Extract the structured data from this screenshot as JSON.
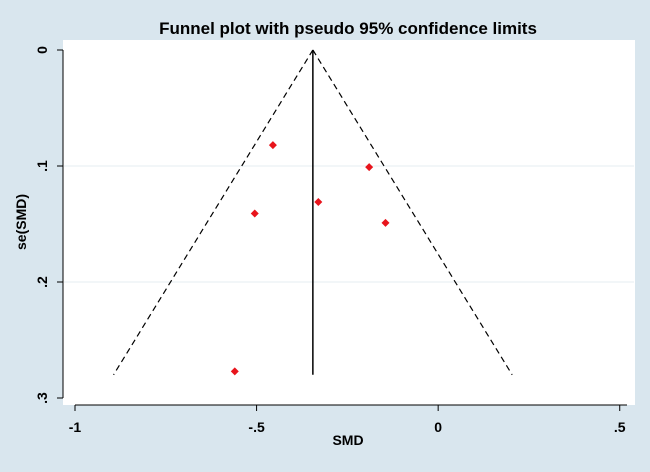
{
  "chart_data": {
    "type": "scatter",
    "title": "Funnel plot with pseudo 95% confidence limits",
    "xlabel": "SMD",
    "ylabel": "se(SMD)",
    "xlim": [
      -1.0,
      0.52
    ],
    "ylim": [
      0.0,
      0.3
    ],
    "y_reversed": true,
    "x_ticks": [
      {
        "value": -1.0,
        "label": "-1"
      },
      {
        "value": -0.5,
        "label": "-.5"
      },
      {
        "value": 0.0,
        "label": "0"
      },
      {
        "value": 0.5,
        "label": ".5"
      }
    ],
    "y_ticks": [
      {
        "value": 0.0,
        "label": "0"
      },
      {
        "value": 0.1,
        "label": ".1"
      },
      {
        "value": 0.2,
        "label": ".2"
      },
      {
        "value": 0.3,
        "label": ".3"
      }
    ],
    "gridlines": "horizontal",
    "pooled_estimate": -0.345,
    "se_max": 0.28,
    "points": [
      {
        "x": -0.455,
        "y": 0.082
      },
      {
        "x": -0.19,
        "y": 0.101
      },
      {
        "x": -0.33,
        "y": 0.131
      },
      {
        "x": -0.505,
        "y": 0.141
      },
      {
        "x": -0.145,
        "y": 0.149
      },
      {
        "x": -0.56,
        "y": 0.277
      }
    ],
    "colors": {
      "background": "#d9e6ee",
      "plot_background": "#ffffff",
      "points": "#e8141c",
      "lines": "#000000",
      "grid": "#e4ecf1"
    }
  }
}
